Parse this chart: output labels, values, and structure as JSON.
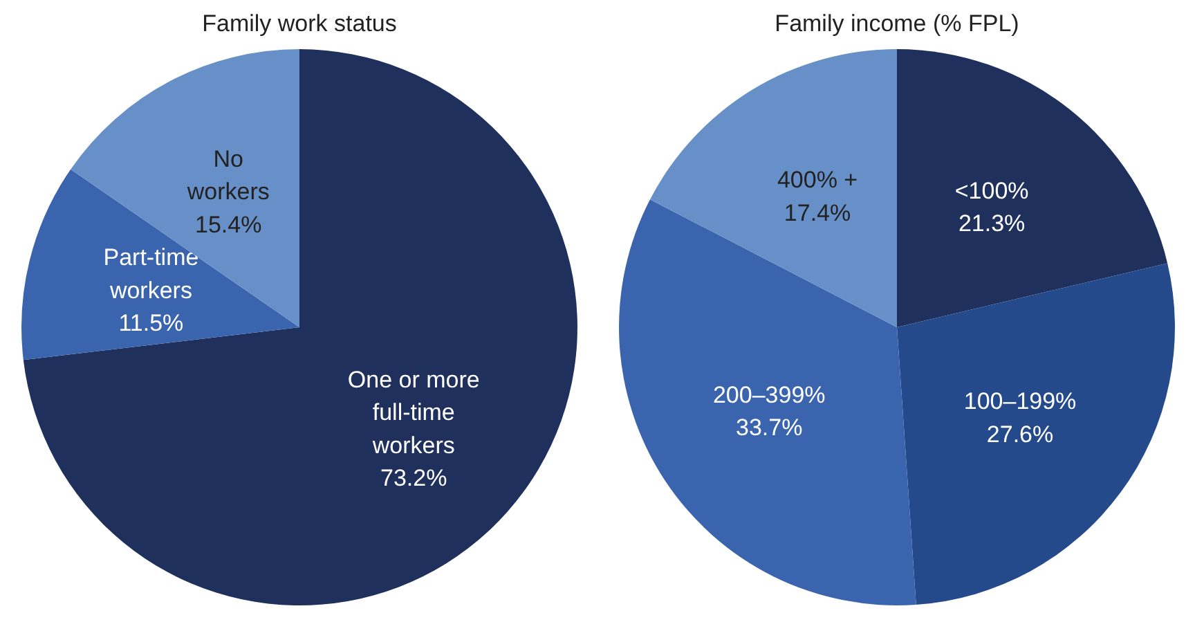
{
  "chart_data": [
    {
      "type": "pie",
      "title": "Family work status",
      "categories": [
        "One or more\nfull-time\nworkers",
        "Part-time\nworkers",
        "No\nworkers"
      ],
      "values": [
        73.2,
        11.5,
        15.4
      ],
      "colors": [
        "#1f305c",
        "#3a64ae",
        "#6890c8"
      ],
      "value_labels": [
        "73.2%",
        "11.5%",
        "15.4%"
      ]
    },
    {
      "type": "pie",
      "title": "Family income (% FPL)",
      "categories": [
        "<100%",
        "100–199%",
        "200–399%",
        "400% +"
      ],
      "values": [
        21.3,
        27.6,
        33.7,
        17.4
      ],
      "colors": [
        "#1f305c",
        "#244a8c",
        "#3a64ae",
        "#6890c8"
      ],
      "value_labels": [
        "21.3%",
        "27.6%",
        "33.7%",
        "17.4%"
      ]
    }
  ]
}
